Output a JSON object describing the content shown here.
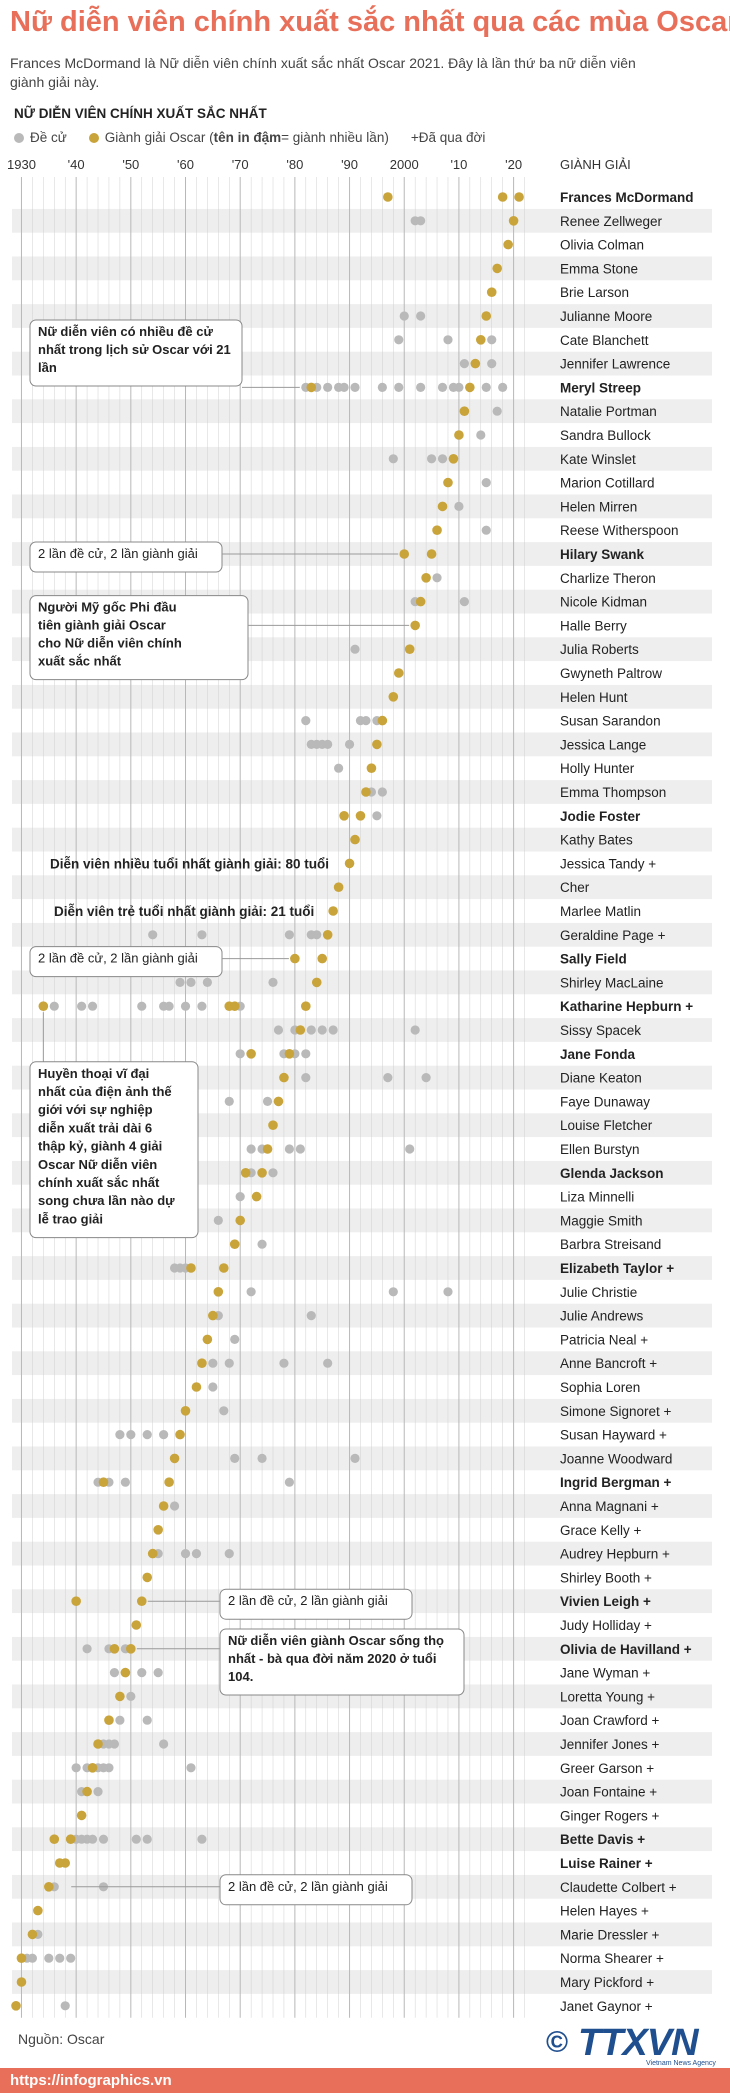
{
  "header": {
    "title": "Nữ diễn viên chính xuất sắc nhất qua các mùa Oscar",
    "subtitle": "Frances McDormand là Nữ diễn viên chính xuất sắc nhất Oscar 2021. Đây là lần thứ ba nữ diễn viên giành giải này.",
    "chart_heading": "NỮ DIỄN VIÊN CHÍNH XUẤT SẮC NHẤT"
  },
  "legend": {
    "nominee": "Đề cử",
    "winner_prefix": "Giành giải Oscar (",
    "winner_bold": "tên in đậm",
    "winner_suffix": " = giành nhiều lần)",
    "deceased": "+Đã qua đời"
  },
  "colors": {
    "title": "#e8705a",
    "win": "#c9a43b",
    "nom": "#b9b9b9",
    "stripe": "#eeeeee",
    "grid": "#d0d0d0",
    "box_border": "#888888"
  },
  "chart_data": {
    "type": "scatter",
    "x_axis_labels": [
      "1930",
      "'40",
      "'50",
      "'60",
      "'70",
      "'80",
      "'90",
      "2000",
      "'10",
      "'20"
    ],
    "x_axis_title": "GIÀNH GIẢI",
    "xlim": [
      1929,
      2023
    ],
    "rows": [
      {
        "name": "Frances McDormand",
        "bold": true,
        "wins": [
          1997,
          2018,
          2021
        ],
        "noms": []
      },
      {
        "name": "Renee Zellweger",
        "bold": false,
        "wins": [
          2020
        ],
        "noms": [
          2002,
          2003
        ]
      },
      {
        "name": "Olivia Colman",
        "bold": false,
        "wins": [
          2019
        ],
        "noms": []
      },
      {
        "name": "Emma Stone",
        "bold": false,
        "wins": [
          2017
        ],
        "noms": []
      },
      {
        "name": "Brie Larson",
        "bold": false,
        "wins": [
          2016
        ],
        "noms": []
      },
      {
        "name": "Julianne Moore",
        "bold": false,
        "wins": [
          2015
        ],
        "noms": [
          2000,
          2003
        ]
      },
      {
        "name": "Cate Blanchett",
        "bold": false,
        "wins": [
          2014
        ],
        "noms": [
          1999,
          2008,
          2016
        ]
      },
      {
        "name": "Jennifer Lawrence",
        "bold": false,
        "wins": [
          2013
        ],
        "noms": [
          2011,
          2016
        ]
      },
      {
        "name": "Meryl Streep",
        "bold": true,
        "wins": [
          1983,
          2012
        ],
        "noms": [
          1982,
          1984,
          1986,
          1988,
          1989,
          1991,
          1996,
          1999,
          2003,
          2007,
          2009,
          2010,
          2015,
          2018
        ]
      },
      {
        "name": "Natalie Portman",
        "bold": false,
        "wins": [
          2011
        ],
        "noms": [
          2017
        ]
      },
      {
        "name": "Sandra Bullock",
        "bold": false,
        "wins": [
          2010
        ],
        "noms": [
          2014
        ]
      },
      {
        "name": "Kate Winslet",
        "bold": false,
        "wins": [
          2009
        ],
        "noms": [
          1998,
          2005,
          2007
        ]
      },
      {
        "name": "Marion Cotillard",
        "bold": false,
        "wins": [
          2008
        ],
        "noms": [
          2015
        ]
      },
      {
        "name": "Helen Mirren",
        "bold": false,
        "wins": [
          2007
        ],
        "noms": [
          2010
        ]
      },
      {
        "name": "Reese Witherspoon",
        "bold": false,
        "wins": [
          2006
        ],
        "noms": [
          2015
        ]
      },
      {
        "name": "Hilary Swank",
        "bold": true,
        "wins": [
          2000,
          2005
        ],
        "noms": []
      },
      {
        "name": "Charlize Theron",
        "bold": false,
        "wins": [
          2004
        ],
        "noms": [
          2006
        ]
      },
      {
        "name": "Nicole Kidman",
        "bold": false,
        "wins": [
          2003
        ],
        "noms": [
          2002,
          2011
        ]
      },
      {
        "name": "Halle Berry",
        "bold": false,
        "wins": [
          2002
        ],
        "noms": []
      },
      {
        "name": "Julia Roberts",
        "bold": false,
        "wins": [
          2001
        ],
        "noms": [
          1991
        ]
      },
      {
        "name": "Gwyneth Paltrow",
        "bold": false,
        "wins": [
          1999
        ],
        "noms": []
      },
      {
        "name": "Helen Hunt",
        "bold": false,
        "wins": [
          1998
        ],
        "noms": []
      },
      {
        "name": "Susan Sarandon",
        "bold": false,
        "wins": [
          1996
        ],
        "noms": [
          1982,
          1992,
          1993,
          1995
        ]
      },
      {
        "name": "Jessica Lange",
        "bold": false,
        "wins": [
          1995
        ],
        "noms": [
          1983,
          1984,
          1985,
          1986,
          1990
        ]
      },
      {
        "name": "Holly Hunter",
        "bold": false,
        "wins": [
          1994
        ],
        "noms": [
          1988
        ]
      },
      {
        "name": "Emma Thompson",
        "bold": false,
        "wins": [
          1993
        ],
        "noms": [
          1994,
          1996
        ]
      },
      {
        "name": "Jodie Foster",
        "bold": true,
        "wins": [
          1989,
          1992
        ],
        "noms": [
          1995
        ]
      },
      {
        "name": "Kathy Bates",
        "bold": false,
        "wins": [
          1991
        ],
        "noms": []
      },
      {
        "name": "Jessica Tandy +",
        "bold": false,
        "wins": [
          1990
        ],
        "noms": []
      },
      {
        "name": "Cher",
        "bold": false,
        "wins": [
          1988
        ],
        "noms": []
      },
      {
        "name": "Marlee Matlin",
        "bold": false,
        "wins": [
          1987
        ],
        "noms": []
      },
      {
        "name": "Geraldine Page +",
        "bold": false,
        "wins": [
          1986
        ],
        "noms": [
          1954,
          1963,
          1979,
          1983,
          1984
        ]
      },
      {
        "name": "Sally Field",
        "bold": true,
        "wins": [
          1980,
          1985
        ],
        "noms": []
      },
      {
        "name": "Shirley MacLaine",
        "bold": false,
        "wins": [
          1984
        ],
        "noms": [
          1959,
          1961,
          1964,
          1976
        ]
      },
      {
        "name": "Katharine Hepburn +",
        "bold": true,
        "wins": [
          1934,
          1968,
          1969,
          1982
        ],
        "noms": [
          1936,
          1941,
          1943,
          1952,
          1956,
          1957,
          1960,
          1963,
          1970
        ]
      },
      {
        "name": "Sissy Spacek",
        "bold": false,
        "wins": [
          1981
        ],
        "noms": [
          1977,
          1980,
          1983,
          1985,
          1987,
          2002
        ]
      },
      {
        "name": "Jane Fonda",
        "bold": true,
        "wins": [
          1972,
          1979
        ],
        "noms": [
          1970,
          1978,
          1980,
          1982
        ]
      },
      {
        "name": "Diane Keaton",
        "bold": false,
        "wins": [
          1978
        ],
        "noms": [
          1982,
          1997,
          2004
        ]
      },
      {
        "name": "Faye Dunaway",
        "bold": false,
        "wins": [
          1977
        ],
        "noms": [
          1968,
          1975
        ]
      },
      {
        "name": "Louise Fletcher",
        "bold": false,
        "wins": [
          1976
        ],
        "noms": []
      },
      {
        "name": "Ellen Burstyn",
        "bold": false,
        "wins": [
          1975
        ],
        "noms": [
          1972,
          1974,
          1979,
          1981,
          2001
        ]
      },
      {
        "name": "Glenda Jackson",
        "bold": true,
        "wins": [
          1971,
          1974
        ],
        "noms": [
          1972,
          1976
        ]
      },
      {
        "name": "Liza Minnelli",
        "bold": false,
        "wins": [
          1973
        ],
        "noms": [
          1970
        ]
      },
      {
        "name": "Maggie Smith",
        "bold": false,
        "wins": [
          1970
        ],
        "noms": [
          1966
        ]
      },
      {
        "name": "Barbra Streisand",
        "bold": false,
        "wins": [
          1969
        ],
        "noms": [
          1974
        ]
      },
      {
        "name": "Elizabeth Taylor +",
        "bold": true,
        "wins": [
          1961,
          1967
        ],
        "noms": [
          1958,
          1959,
          1960
        ]
      },
      {
        "name": "Julie Christie",
        "bold": false,
        "wins": [
          1966
        ],
        "noms": [
          1972,
          1998,
          2008
        ]
      },
      {
        "name": "Julie Andrews",
        "bold": false,
        "wins": [
          1965
        ],
        "noms": [
          1966,
          1983
        ]
      },
      {
        "name": "Patricia Neal +",
        "bold": false,
        "wins": [
          1964
        ],
        "noms": [
          1969
        ]
      },
      {
        "name": "Anne Bancroft +",
        "bold": false,
        "wins": [
          1963
        ],
        "noms": [
          1965,
          1968,
          1978,
          1986
        ]
      },
      {
        "name": "Sophia Loren",
        "bold": false,
        "wins": [
          1962
        ],
        "noms": [
          1965
        ]
      },
      {
        "name": "Simone Signoret +",
        "bold": false,
        "wins": [
          1960
        ],
        "noms": [
          1967
        ]
      },
      {
        "name": "Susan Hayward +",
        "bold": false,
        "wins": [
          1959
        ],
        "noms": [
          1948,
          1950,
          1953,
          1956
        ]
      },
      {
        "name": "Joanne Woodward",
        "bold": false,
        "wins": [
          1958
        ],
        "noms": [
          1969,
          1974,
          1991
        ]
      },
      {
        "name": "Ingrid Bergman +",
        "bold": true,
        "wins": [
          1945,
          1957
        ],
        "noms": [
          1944,
          1946,
          1949,
          1979
        ]
      },
      {
        "name": "Anna Magnani +",
        "bold": false,
        "wins": [
          1956
        ],
        "noms": [
          1958
        ]
      },
      {
        "name": "Grace Kelly +",
        "bold": false,
        "wins": [
          1955
        ],
        "noms": []
      },
      {
        "name": "Audrey Hepburn +",
        "bold": false,
        "wins": [
          1954
        ],
        "noms": [
          1955,
          1960,
          1962,
          1968
        ]
      },
      {
        "name": "Shirley Booth +",
        "bold": false,
        "wins": [
          1953
        ],
        "noms": []
      },
      {
        "name": "Vivien Leigh +",
        "bold": true,
        "wins": [
          1940,
          1952
        ],
        "noms": []
      },
      {
        "name": "Judy Holliday +",
        "bold": false,
        "wins": [
          1951
        ],
        "noms": []
      },
      {
        "name": "Olivia de Havilland +",
        "bold": true,
        "wins": [
          1947,
          1950
        ],
        "noms": [
          1942,
          1946,
          1949
        ]
      },
      {
        "name": "Jane Wyman +",
        "bold": false,
        "wins": [
          1949
        ],
        "noms": [
          1947,
          1952,
          1955
        ]
      },
      {
        "name": "Loretta Young +",
        "bold": false,
        "wins": [
          1948
        ],
        "noms": [
          1950
        ]
      },
      {
        "name": "Joan Crawford +",
        "bold": false,
        "wins": [
          1946
        ],
        "noms": [
          1948,
          1953
        ]
      },
      {
        "name": "Jennifer Jones +",
        "bold": false,
        "wins": [
          1944
        ],
        "noms": [
          1945,
          1946,
          1947,
          1956
        ]
      },
      {
        "name": "Greer Garson +",
        "bold": false,
        "wins": [
          1943
        ],
        "noms": [
          1940,
          1942,
          1944,
          1945,
          1946,
          1961
        ]
      },
      {
        "name": "Joan Fontaine +",
        "bold": false,
        "wins": [
          1942
        ],
        "noms": [
          1941,
          1944
        ]
      },
      {
        "name": "Ginger Rogers +",
        "bold": false,
        "wins": [
          1941
        ],
        "noms": []
      },
      {
        "name": "Bette Davis +",
        "bold": true,
        "wins": [
          1936,
          1939
        ],
        "noms": [
          1939,
          1940,
          1941,
          1942,
          1943,
          1945,
          1951,
          1953,
          1963
        ]
      },
      {
        "name": "Luise Rainer +",
        "bold": true,
        "wins": [
          1937,
          1938
        ],
        "noms": []
      },
      {
        "name": "Claudette Colbert +",
        "bold": false,
        "wins": [
          1935
        ],
        "noms": [
          1936,
          1945
        ]
      },
      {
        "name": "Helen Hayes +",
        "bold": false,
        "wins": [
          1933
        ],
        "noms": []
      },
      {
        "name": "Marie Dressler +",
        "bold": false,
        "wins": [
          1932
        ],
        "noms": [
          1933
        ]
      },
      {
        "name": "Norma Shearer +",
        "bold": false,
        "wins": [
          1930
        ],
        "noms": [
          1931,
          1932,
          1935,
          1937,
          1939
        ]
      },
      {
        "name": "Mary Pickford +",
        "bold": false,
        "wins": [
          1930
        ],
        "noms": []
      },
      {
        "name": "Janet Gaynor +",
        "bold": false,
        "wins": [
          1929
        ],
        "noms": [
          1938
        ]
      }
    ],
    "annotations": [
      {
        "text": "Nữ diễn viên có nhiều đề cử nhất trong lịch sử Oscar với 21 lần",
        "row": 8
      },
      {
        "text": "2 lần đề cử, 2 lần giành giải",
        "row": 15
      },
      {
        "text": "Người Mỹ gốc Phi đầu tiên giành giải Oscar cho Nữ diễn viên chính xuất sắc nhất",
        "row": 18
      },
      {
        "text": "Diễn viên nhiều tuổi nhất giành giải: 80 tuổi",
        "row": 28
      },
      {
        "text": "Diễn viên trẻ tuổi nhất giành giải: 21 tuổi",
        "row": 30
      },
      {
        "text": "2 lần đề cử, 2 lần giành giải",
        "row": 32
      },
      {
        "text": "Huyền thoại vĩ đại nhất của điện ảnh thế giới với sự nghiệp diễn xuất trải dài 6 thập kỷ, giành 4 giải Oscar Nữ diễn viên chính xuất sắc nhất song chưa lần nào dự lễ trao giải",
        "row": 34
      },
      {
        "text": "2 lần đề cử, 2 lần giành giải",
        "row": 59
      },
      {
        "text": "Nữ diễn viên giành Oscar sống thọ nhất - bà qua đời năm 2020 ở tuổi 104.",
        "row": 61
      },
      {
        "text": "2 lần đề cử, 2 lần giành giải",
        "row": 71
      }
    ]
  },
  "footer": {
    "source": "Nguồn: Oscar",
    "url": "https://infographics.vn",
    "logo": "TTXVN",
    "logo_sub": "Vietnam News Agency"
  }
}
